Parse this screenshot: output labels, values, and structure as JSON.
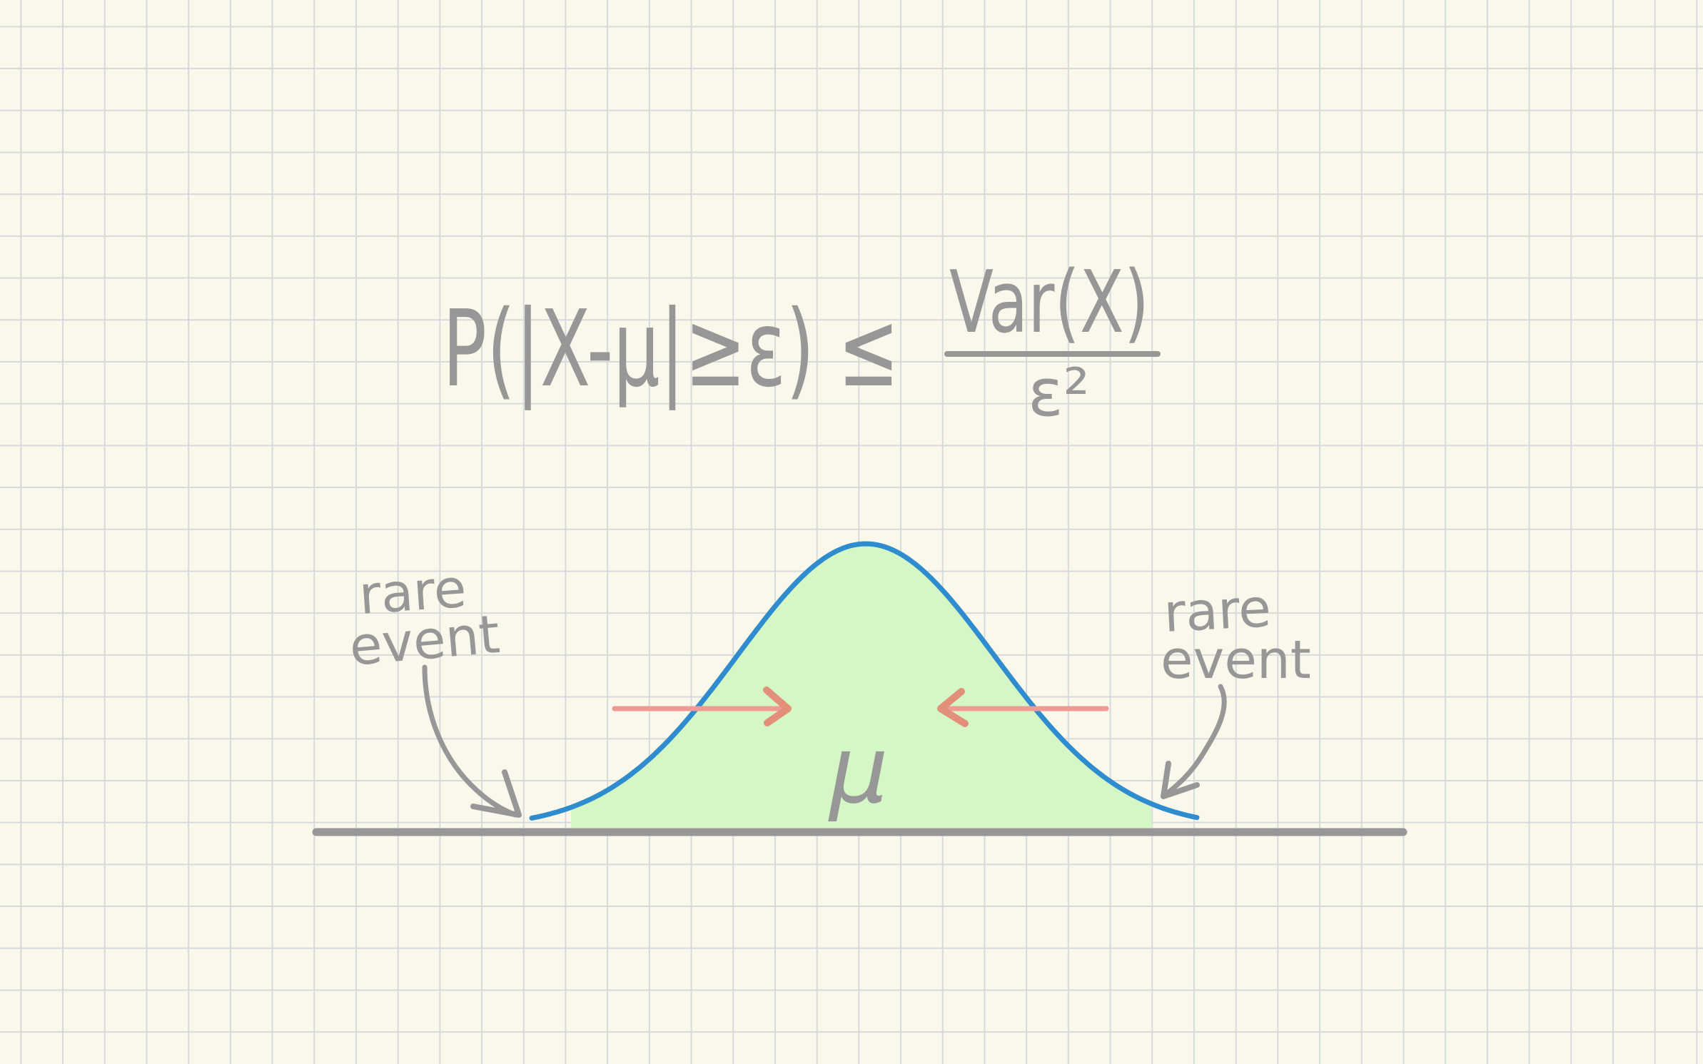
{
  "paper": {
    "background": "#faf8eb",
    "grid_color": "#d7dadb"
  },
  "formula": {
    "lhs": "P(|X-μ|≥ε) ≤",
    "numerator": "Var(X)",
    "denominator": "ε²",
    "ink_color": "#979797"
  },
  "curve": {
    "stroke_color": "#2e8ccf",
    "fill_color": "#d4f7c5",
    "mean_label": "μ"
  },
  "axis": {
    "color": "#979797"
  },
  "arrows": {
    "color": "#f09a94",
    "head_color": "#e3907a"
  },
  "annotations": {
    "left": {
      "line1": "rare",
      "line2": "event"
    },
    "right": {
      "line1": "rare",
      "line2": "event"
    }
  }
}
